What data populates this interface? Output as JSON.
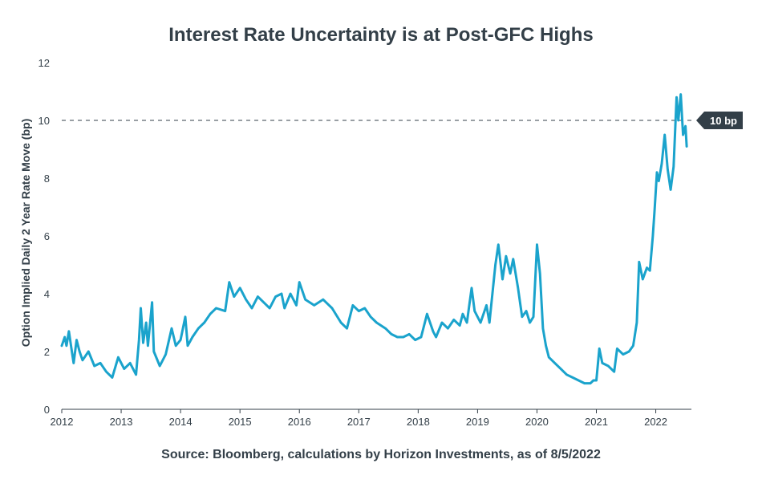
{
  "chart_data": {
    "type": "line",
    "title": "Interest Rate Uncertainty is at Post-GFC Highs",
    "source": "Source: Bloomberg, calculations by Horizon Investments, as of 8/5/2022",
    "ylabel": "Option Implied Daily 2 Year Rate Move (bp)",
    "xlabel": "",
    "xlim": [
      2012.0,
      2022.6
    ],
    "ylim": [
      0,
      12
    ],
    "x_ticks": [
      "2012",
      "2013",
      "2014",
      "2015",
      "2016",
      "2017",
      "2018",
      "2019",
      "2020",
      "2021",
      "2022"
    ],
    "y_ticks": [
      "0",
      "2",
      "4",
      "6",
      "8",
      "10",
      "12"
    ],
    "grid": false,
    "reference_line": {
      "y": 10,
      "style": "dashed",
      "label": "10 bp"
    },
    "colors": {
      "line": "#1aa3cc",
      "text": "#333f48",
      "label_bg": "#333f48"
    },
    "series": [
      {
        "points": [
          [
            2012.0,
            2.2
          ],
          [
            2012.05,
            2.5
          ],
          [
            2012.08,
            2.2
          ],
          [
            2012.12,
            2.7
          ],
          [
            2012.17,
            2.0
          ],
          [
            2012.2,
            1.6
          ],
          [
            2012.25,
            2.4
          ],
          [
            2012.3,
            2.0
          ],
          [
            2012.35,
            1.7
          ],
          [
            2012.45,
            2.0
          ],
          [
            2012.55,
            1.5
          ],
          [
            2012.65,
            1.6
          ],
          [
            2012.75,
            1.3
          ],
          [
            2012.85,
            1.1
          ],
          [
            2012.95,
            1.8
          ],
          [
            2013.05,
            1.4
          ],
          [
            2013.15,
            1.6
          ],
          [
            2013.25,
            1.2
          ],
          [
            2013.3,
            2.4
          ],
          [
            2013.33,
            3.5
          ],
          [
            2013.37,
            2.3
          ],
          [
            2013.42,
            3.0
          ],
          [
            2013.45,
            2.2
          ],
          [
            2013.52,
            3.7
          ],
          [
            2013.55,
            2.0
          ],
          [
            2013.65,
            1.5
          ],
          [
            2013.75,
            1.9
          ],
          [
            2013.85,
            2.8
          ],
          [
            2013.92,
            2.2
          ],
          [
            2014.0,
            2.4
          ],
          [
            2014.08,
            3.2
          ],
          [
            2014.12,
            2.2
          ],
          [
            2014.2,
            2.5
          ],
          [
            2014.3,
            2.8
          ],
          [
            2014.4,
            3.0
          ],
          [
            2014.5,
            3.3
          ],
          [
            2014.6,
            3.5
          ],
          [
            2014.75,
            3.4
          ],
          [
            2014.82,
            4.4
          ],
          [
            2014.9,
            3.9
          ],
          [
            2015.0,
            4.2
          ],
          [
            2015.1,
            3.8
          ],
          [
            2015.2,
            3.5
          ],
          [
            2015.3,
            3.9
          ],
          [
            2015.4,
            3.7
          ],
          [
            2015.5,
            3.5
          ],
          [
            2015.6,
            3.9
          ],
          [
            2015.7,
            4.0
          ],
          [
            2015.75,
            3.5
          ],
          [
            2015.85,
            4.0
          ],
          [
            2015.95,
            3.6
          ],
          [
            2016.0,
            4.4
          ],
          [
            2016.1,
            3.8
          ],
          [
            2016.25,
            3.6
          ],
          [
            2016.4,
            3.8
          ],
          [
            2016.55,
            3.5
          ],
          [
            2016.7,
            3.0
          ],
          [
            2016.8,
            2.8
          ],
          [
            2016.9,
            3.6
          ],
          [
            2017.0,
            3.4
          ],
          [
            2017.1,
            3.5
          ],
          [
            2017.2,
            3.2
          ],
          [
            2017.3,
            3.0
          ],
          [
            2017.45,
            2.8
          ],
          [
            2017.55,
            2.6
          ],
          [
            2017.65,
            2.5
          ],
          [
            2017.75,
            2.5
          ],
          [
            2017.85,
            2.6
          ],
          [
            2017.95,
            2.4
          ],
          [
            2018.05,
            2.5
          ],
          [
            2018.15,
            3.3
          ],
          [
            2018.25,
            2.7
          ],
          [
            2018.3,
            2.5
          ],
          [
            2018.4,
            3.0
          ],
          [
            2018.5,
            2.8
          ],
          [
            2018.6,
            3.1
          ],
          [
            2018.7,
            2.9
          ],
          [
            2018.75,
            3.3
          ],
          [
            2018.82,
            3.0
          ],
          [
            2018.9,
            4.2
          ],
          [
            2018.95,
            3.4
          ],
          [
            2019.05,
            3.0
          ],
          [
            2019.15,
            3.6
          ],
          [
            2019.2,
            3.0
          ],
          [
            2019.3,
            5.0
          ],
          [
            2019.35,
            5.7
          ],
          [
            2019.42,
            4.5
          ],
          [
            2019.48,
            5.3
          ],
          [
            2019.55,
            4.7
          ],
          [
            2019.6,
            5.2
          ],
          [
            2019.68,
            4.2
          ],
          [
            2019.75,
            3.2
          ],
          [
            2019.82,
            3.4
          ],
          [
            2019.88,
            3.0
          ],
          [
            2019.94,
            3.2
          ],
          [
            2020.0,
            5.7
          ],
          [
            2020.05,
            4.7
          ],
          [
            2020.1,
            2.8
          ],
          [
            2020.15,
            2.2
          ],
          [
            2020.2,
            1.8
          ],
          [
            2020.3,
            1.6
          ],
          [
            2020.4,
            1.4
          ],
          [
            2020.5,
            1.2
          ],
          [
            2020.6,
            1.1
          ],
          [
            2020.7,
            1.0
          ],
          [
            2020.8,
            0.9
          ],
          [
            2020.9,
            0.9
          ],
          [
            2020.95,
            1.0
          ],
          [
            2021.0,
            1.0
          ],
          [
            2021.05,
            2.1
          ],
          [
            2021.1,
            1.6
          ],
          [
            2021.2,
            1.5
          ],
          [
            2021.3,
            1.3
          ],
          [
            2021.35,
            2.1
          ],
          [
            2021.45,
            1.9
          ],
          [
            2021.55,
            2.0
          ],
          [
            2021.62,
            2.2
          ],
          [
            2021.68,
            3.0
          ],
          [
            2021.72,
            5.1
          ],
          [
            2021.78,
            4.5
          ],
          [
            2021.85,
            4.9
          ],
          [
            2021.9,
            4.8
          ],
          [
            2021.95,
            6.0
          ],
          [
            2021.98,
            6.9
          ],
          [
            2022.02,
            8.2
          ],
          [
            2022.05,
            7.9
          ],
          [
            2022.1,
            8.5
          ],
          [
            2022.15,
            9.5
          ],
          [
            2022.2,
            8.3
          ],
          [
            2022.25,
            7.6
          ],
          [
            2022.3,
            8.4
          ],
          [
            2022.35,
            10.8
          ],
          [
            2022.38,
            10.0
          ],
          [
            2022.42,
            10.9
          ],
          [
            2022.46,
            9.5
          ],
          [
            2022.5,
            9.8
          ],
          [
            2022.52,
            9.1
          ]
        ]
      }
    ]
  }
}
